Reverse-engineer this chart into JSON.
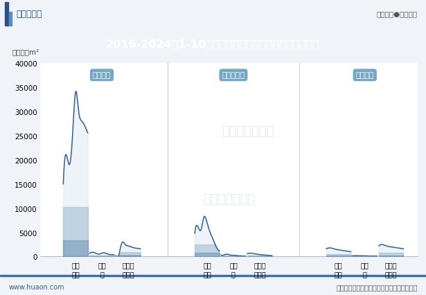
{
  "title": "2016-2024年1-10月广西壮族自治区房地产施工面积情况",
  "unit_label": "单位：万m²",
  "header_left": "华经情报网",
  "header_right": "专业严谨●客观科学",
  "footer_left": "www.huaon.com",
  "footer_right": "数据来源：国家统计局；华经产业研究院整理",
  "watermark": "华经产业研究院",
  "title_bg_color": "#3d6fa3",
  "title_text_color": "#ffffff",
  "bg_color": "#f0f4f8",
  "plot_bg_color": "#ffffff",
  "header_bg_color": "#ffffff",
  "footer_line_color": "#3d6fa3",
  "groups": [
    "施工面积",
    "新开工面积",
    "竣工面积"
  ],
  "group_label_bg": "#6a9fc0",
  "group_label_text": "#ffffff",
  "categories": [
    "商品\n住宅",
    "办公\n楼",
    "商业营\n业用房"
  ],
  "series_data": {
    "施工面积": {
      "商品住宅": [
        15000,
        21000,
        19000,
        24800,
        34000,
        30000,
        28000,
        27000,
        25500
      ],
      "办公楼": [
        650,
        900,
        700,
        500,
        700,
        750,
        500,
        400,
        350
      ],
      "商业营业用房": [
        200,
        400,
        2900,
        2500,
        2200,
        2000,
        1800,
        1700,
        1600
      ]
    },
    "新开工面积": {
      "商品住宅": [
        4800,
        6200,
        5500,
        8200,
        7000,
        5000,
        3500,
        2000,
        1200
      ],
      "办公楼": [
        300,
        350,
        500,
        300,
        280,
        200,
        150,
        100,
        80
      ],
      "商业营业用房": [
        600,
        700,
        600,
        500,
        400,
        350,
        300,
        250,
        200
      ]
    },
    "竣工面积": {
      "商品住宅": [
        1600,
        1800,
        1700,
        1500,
        1400,
        1300,
        1200,
        1100,
        1000
      ],
      "办公楼": [
        150,
        180,
        160,
        140,
        130,
        120,
        110,
        100,
        90
      ],
      "商业营业用房": [
        2200,
        2500,
        2300,
        2100,
        2000,
        1900,
        1800,
        1700,
        1600
      ]
    }
  },
  "line_color": "#3a5f8a",
  "fill_color": "#c0d4e8",
  "ylim": [
    0,
    40000
  ],
  "yticks": [
    0,
    5000,
    10000,
    15000,
    20000,
    25000,
    30000,
    35000,
    40000
  ],
  "group_centers": [
    1.8,
    6.3,
    10.8
  ],
  "cat_offsets": [
    -0.9,
    0.0,
    0.9
  ],
  "xlim": [
    -0.3,
    12.6
  ]
}
